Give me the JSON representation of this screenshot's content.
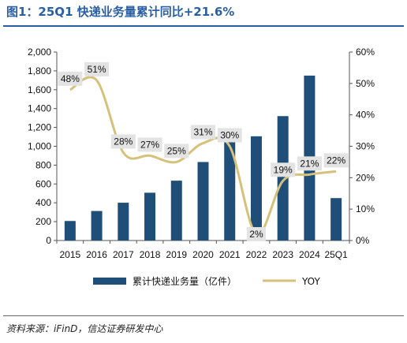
{
  "title": "图1：25Q1 快递业务量累计同比+21.6%",
  "source": "资料来源：iFinD，信达证券研发中心",
  "chart_data": {
    "type": "bar",
    "categories": [
      "2015",
      "2016",
      "2017",
      "2018",
      "2019",
      "2020",
      "2021",
      "2022",
      "2023",
      "2024",
      "25Q1"
    ],
    "series": [
      {
        "name": "累计快递业务量（亿件）",
        "type": "bar",
        "axis": "left",
        "color": "#1f4e79",
        "values": [
          207,
          313,
          401,
          507,
          635,
          833,
          1083,
          1106,
          1320,
          1750,
          450
        ]
      },
      {
        "name": "YOY",
        "type": "line",
        "axis": "right",
        "color": "#d6c17a",
        "values": [
          48,
          51,
          28,
          27,
          25,
          31,
          30,
          2,
          19,
          21,
          22
        ],
        "labels": [
          "48%",
          "51%",
          "28%",
          "27%",
          "25%",
          "31%",
          "30%",
          "2%",
          "19%",
          "21%",
          "22%"
        ]
      }
    ],
    "y_left": {
      "min": 0,
      "max": 2000,
      "ticks": [
        0,
        200,
        400,
        600,
        800,
        1000,
        1200,
        1400,
        1600,
        1800,
        2000
      ],
      "tick_labels": [
        "0",
        "200",
        "400",
        "600",
        "800",
        "1,000",
        "1,200",
        "1,400",
        "1,600",
        "1,800",
        "2,000"
      ]
    },
    "y_right": {
      "min": 0,
      "max": 60,
      "ticks": [
        0,
        10,
        20,
        30,
        40,
        50,
        60
      ],
      "tick_labels": [
        "0%",
        "10%",
        "20%",
        "30%",
        "40%",
        "50%",
        "60%"
      ]
    },
    "legend_position": "bottom",
    "grid": false
  }
}
